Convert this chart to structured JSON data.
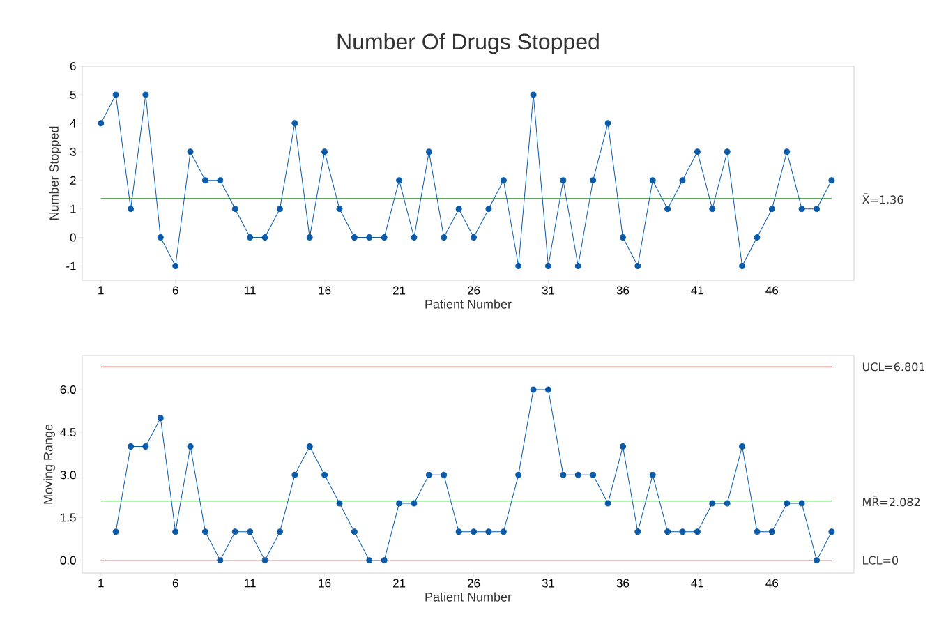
{
  "chart_data": [
    {
      "type": "line",
      "title": "Number Of Drugs Stopped",
      "xlabel": "Patient Number",
      "ylabel": "Number Stopped",
      "color": "#0a5aa8",
      "marker": "circle",
      "line_style": "solid",
      "grid": false,
      "x": [
        1,
        2,
        3,
        4,
        5,
        6,
        7,
        8,
        9,
        10,
        11,
        12,
        13,
        14,
        15,
        16,
        17,
        18,
        19,
        20,
        21,
        22,
        23,
        24,
        25,
        26,
        27,
        28,
        29,
        30,
        31,
        32,
        33,
        34,
        35,
        36,
        37,
        38,
        39,
        40,
        41,
        42,
        43,
        44,
        45,
        46,
        47,
        48,
        49,
        50
      ],
      "values": [
        4,
        5,
        1,
        5,
        0,
        -1,
        3,
        2,
        2,
        1,
        0,
        0,
        1,
        4,
        0,
        3,
        1,
        0,
        0,
        0,
        2,
        0,
        3,
        0,
        1,
        0,
        1,
        2,
        -1,
        5,
        -1,
        2,
        -1,
        2,
        4,
        0,
        -1,
        2,
        1,
        2,
        3,
        1,
        3,
        -1,
        0,
        1,
        3,
        1,
        1,
        2
      ],
      "xlim": [
        -0.25,
        51.5
      ],
      "ylim": [
        -1.5,
        6
      ],
      "xticks": [
        1,
        6,
        11,
        16,
        21,
        26,
        31,
        36,
        41,
        46
      ],
      "yticks": [
        -1,
        0,
        1,
        2,
        3,
        4,
        5,
        6
      ],
      "ref_lines": [
        {
          "axis": "y",
          "value": 1.36,
          "label": "X̄=1.36",
          "color": "#2e8b2e"
        }
      ]
    },
    {
      "type": "line",
      "xlabel": "Patient Number",
      "ylabel": "Moving Range",
      "color": "#0a5aa8",
      "marker": "circle",
      "line_style": "solid",
      "grid": false,
      "x": [
        2,
        3,
        4,
        5,
        6,
        7,
        8,
        9,
        10,
        11,
        12,
        13,
        14,
        15,
        16,
        17,
        18,
        19,
        20,
        21,
        22,
        23,
        24,
        25,
        26,
        27,
        28,
        29,
        30,
        31,
        32,
        33,
        34,
        35,
        36,
        37,
        38,
        39,
        40,
        41,
        42,
        43,
        44,
        45,
        46,
        47,
        48,
        49,
        50
      ],
      "values": [
        1,
        4,
        4,
        5,
        1,
        4,
        1,
        0,
        1,
        1,
        0,
        1,
        3,
        4,
        3,
        2,
        1,
        0,
        0,
        2,
        2,
        3,
        3,
        1,
        1,
        1,
        1,
        3,
        6,
        6,
        3,
        3,
        3,
        2,
        4,
        1,
        3,
        1,
        1,
        1,
        2,
        2,
        4,
        1,
        1,
        2,
        2,
        0,
        1
      ],
      "xlim": [
        -0.25,
        51.5
      ],
      "ylim": [
        -0.45,
        7.2
      ],
      "xticks": [
        1,
        6,
        11,
        16,
        21,
        26,
        31,
        36,
        41,
        46
      ],
      "yticks": [
        {
          "value": 0,
          "label": "0.0"
        },
        {
          "value": 1.5,
          "label": "1.5"
        },
        {
          "value": 3,
          "label": "3.0"
        },
        {
          "value": 4.5,
          "label": "4.5"
        },
        {
          "value": 6,
          "label": "6.0"
        }
      ],
      "ref_lines": [
        {
          "axis": "y",
          "value": 6.801,
          "label": "UCL=6.801",
          "color": "#8b1a1a"
        },
        {
          "axis": "y",
          "value": 2.082,
          "label": "MR̄=2.082",
          "color": "#2e8b2e"
        },
        {
          "axis": "y",
          "value": 0,
          "label": "LCL=0",
          "color": "#8b1a1a"
        }
      ]
    }
  ]
}
